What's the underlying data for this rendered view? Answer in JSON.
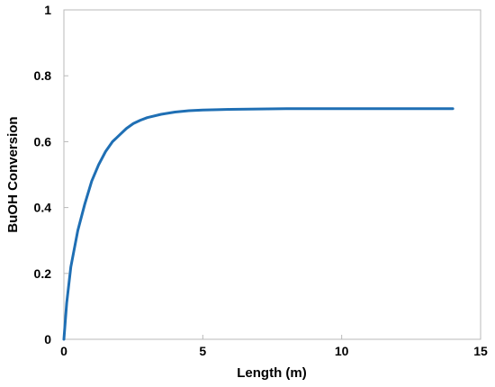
{
  "chart_data": {
    "type": "line",
    "title": "",
    "xlabel": "Length (m)",
    "ylabel": "BuOH Conversion",
    "xlim": [
      0,
      15
    ],
    "ylim": [
      0,
      1
    ],
    "x_ticks": [
      0,
      5,
      10,
      15
    ],
    "x_tick_labels": [
      "0",
      "5",
      "10",
      "15"
    ],
    "y_ticks": [
      0,
      0.2,
      0.4,
      0.6,
      0.8,
      1
    ],
    "y_tick_labels": [
      "0",
      "0.2",
      "0.4",
      "0.6",
      "0.8",
      "1"
    ],
    "grid": false,
    "legend": "none",
    "series": [
      {
        "color": "#1f6fb4",
        "x": [
          0,
          0.1,
          0.25,
          0.5,
          0.75,
          1.0,
          1.25,
          1.5,
          1.75,
          2.0,
          2.25,
          2.5,
          2.75,
          3.0,
          3.5,
          4.0,
          4.5,
          5.0,
          5.5,
          6.0,
          7.0,
          8.0,
          9.0,
          10.0,
          11.0,
          12.0,
          13.0,
          14.0
        ],
        "y": [
          0,
          0.11,
          0.22,
          0.33,
          0.41,
          0.48,
          0.53,
          0.57,
          0.6,
          0.62,
          0.64,
          0.655,
          0.665,
          0.673,
          0.683,
          0.69,
          0.694,
          0.696,
          0.697,
          0.698,
          0.699,
          0.7,
          0.7,
          0.7,
          0.7,
          0.7,
          0.7,
          0.7
        ]
      }
    ]
  }
}
